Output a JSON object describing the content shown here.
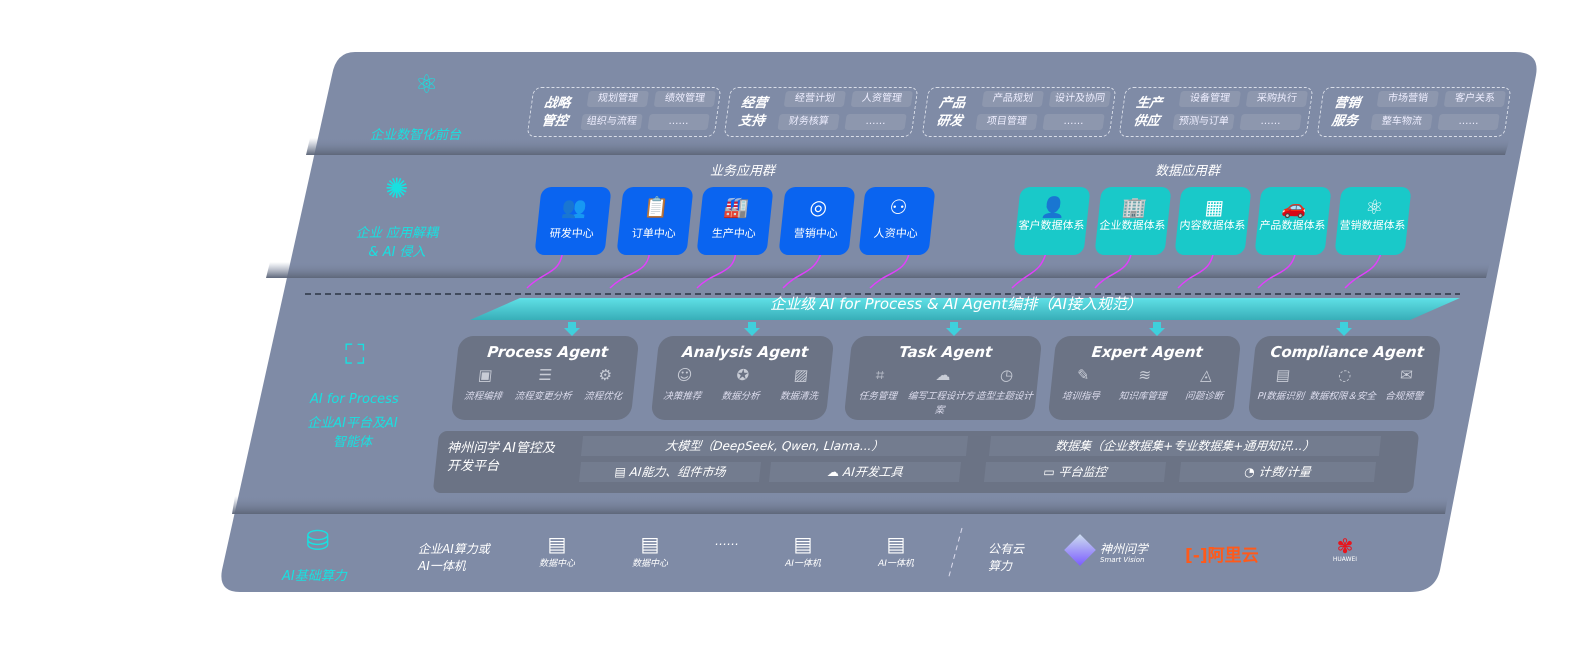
{
  "layers": {
    "front": {
      "label": "企业数智化前台",
      "icon": "brain-icon",
      "groups": [
        {
          "title": "战略管控",
          "items": [
            "规划管理",
            "绩效管理",
            "组织与流程",
            "……"
          ]
        },
        {
          "title": "经营支持",
          "items": [
            "经营计划",
            "人资管理",
            "财务核算",
            "……"
          ]
        },
        {
          "title": "产品研发",
          "items": [
            "产品规划",
            "设计及协同",
            "项目管理",
            "……"
          ]
        },
        {
          "title": "生产供应",
          "items": [
            "设备管理",
            "采购执行",
            "预测与订单",
            "……"
          ]
        },
        {
          "title": "营销服务",
          "items": [
            "市场营销",
            "客户关系",
            "整车物流",
            "……"
          ]
        }
      ]
    },
    "apps": {
      "label": "企业 应用解耦 & AI 侵入",
      "icon": "molecule-icon",
      "business_title": "业务应用群",
      "business": [
        "研发中心",
        "订单中心",
        "生产中心",
        "营销中心",
        "人资中心"
      ],
      "data_title": "数据应用群",
      "data": [
        "客户数据体系",
        "企业数据体系",
        "内容数据体系",
        "产品数据体系",
        "营销数据体系"
      ]
    },
    "ai": {
      "label1": "AI for Process",
      "label2": "企业AI平台及AI智能体",
      "icon": "face-scan-icon",
      "banner": "企业级 AI for Process & AI Agent编排（AI接入规范）",
      "agents": [
        {
          "title": "Process Agent",
          "items": [
            "流程编排",
            "流程变更分析",
            "流程优化"
          ]
        },
        {
          "title": "Analysis Agent",
          "items": [
            "决策推荐",
            "数据分析",
            "数据清洗"
          ]
        },
        {
          "title": "Task Agent",
          "items": [
            "任务管理",
            "编写工程设计方案",
            "造型主题设计"
          ]
        },
        {
          "title": "Expert Agent",
          "items": [
            "培训指导",
            "知识库管理",
            "问题诊断"
          ]
        },
        {
          "title": "Compliance Agent",
          "items": [
            "PI数据识别",
            "数据权限＆安全",
            "合规预警"
          ]
        }
      ],
      "platform": {
        "title": "神州问学 AI管控及开发平台",
        "llm": "大模型（DeepSeek, Qwen, Llama...）",
        "dataset": "数据集（企业数据集+专业数据集+通用知识...）",
        "tools": [
          "AI能力、组件市场",
          "AI开发工具",
          "平台监控",
          "计费/计量"
        ]
      }
    },
    "infra": {
      "label": "AI基础算力",
      "icon": "database-icon",
      "private_title": "企业AI算力或AI一体机",
      "private": [
        "数据中心",
        "数据中心",
        "……",
        "AI一体机",
        "AI一体机"
      ],
      "public_title": "公有云算力",
      "vendors": [
        "神州问学",
        "Smart Vision",
        "阿里云",
        "HUAWEI"
      ]
    }
  },
  "colors": {
    "panel": "#7f8ba6",
    "accent": "#19e0e0",
    "business": "#0a64f0",
    "data": "#19c9c9",
    "arrow": "#e040fb"
  }
}
